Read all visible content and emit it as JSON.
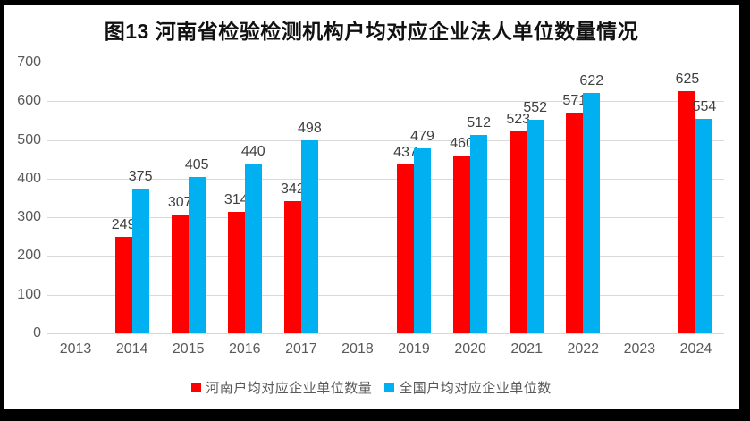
{
  "chart_data": {
    "type": "bar",
    "title": "图13  河南省检验检测机构户均对应企业法人单位数量情况",
    "categories": [
      "2013",
      "2014",
      "2015",
      "2016",
      "2017",
      "2018",
      "2019",
      "2020",
      "2021",
      "2022",
      "2023",
      "2024"
    ],
    "series": [
      {
        "name": "河南户均对应企业单位数量",
        "color": "#FF0000",
        "values": [
          null,
          249,
          307,
          314,
          342,
          null,
          437,
          460,
          523,
          571,
          null,
          625
        ]
      },
      {
        "name": "全国户均对应企业单位数",
        "color": "#00B0F0",
        "values": [
          null,
          375,
          405,
          440,
          498,
          null,
          479,
          512,
          552,
          622,
          null,
          554
        ]
      }
    ],
    "xlabel": "",
    "ylabel": "",
    "ylim": [
      0,
      700
    ],
    "yticks": [
      0,
      100,
      200,
      300,
      400,
      500,
      600,
      700
    ],
    "grid": true,
    "legend_position": "bottom",
    "data_labels": true,
    "colors": {
      "gridline": "#D9D9D9",
      "axis_label": "#595959",
      "data_label": "#404040",
      "title": "#111111",
      "background": "#FFFFFF",
      "frame": "#000000"
    }
  }
}
